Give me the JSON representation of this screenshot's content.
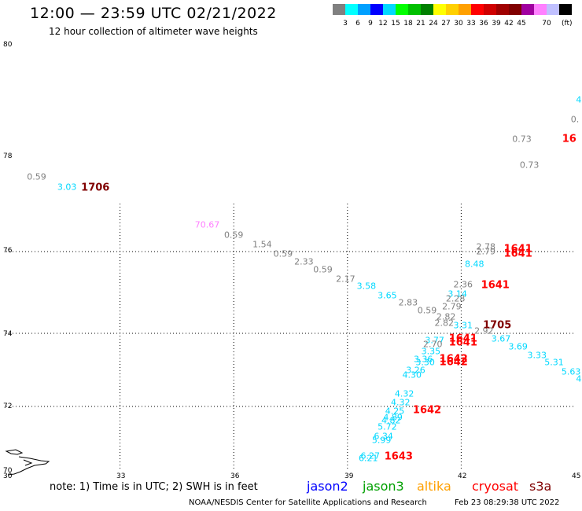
{
  "title": "12:00 — 23:59 UTC 02/21/2022",
  "subtitle": "12 hour collection of altimeter wave heights",
  "legend": {
    "colors": [
      "#808080",
      "#00ffff",
      "#00a0ff",
      "#0000ff",
      "#00d8ff",
      "#00ff00",
      "#00c000",
      "#008000",
      "#ffff00",
      "#ffd000",
      "#ffa000",
      "#ff0000",
      "#d00000",
      "#a00000",
      "#800000",
      "#a000a0",
      "#ff80ff",
      "#c0c0ff",
      "#000000"
    ],
    "labels": [
      "3",
      "6",
      "9",
      "12",
      "15",
      "18",
      "21",
      "24",
      "27",
      "30",
      "33",
      "36",
      "39",
      "42",
      "45",
      "70"
    ],
    "unit": "(ft)"
  },
  "lat_labels": [
    "80",
    "78",
    "76",
    "74",
    "72",
    "70"
  ],
  "lon_labels": [
    "30",
    "33",
    "36",
    "39",
    "42",
    "45"
  ],
  "map": {
    "lat_range": [
      70,
      80
    ],
    "lon_range": [
      30,
      45
    ],
    "grid_lats": [
      72,
      74,
      76
    ],
    "grid_lons": [
      33,
      36,
      39,
      42
    ]
  },
  "measurements": [
    {
      "text": "0.59",
      "lon": 30.8,
      "lat": 77.55,
      "color": "#808080"
    },
    {
      "text": "3.03",
      "lon": 31.6,
      "lat": 77.35,
      "color": "#00d8ff"
    },
    {
      "text": "70.67",
      "lon": 35.3,
      "lat": 76.55,
      "color": "#ff80ff"
    },
    {
      "text": "0.59",
      "lon": 36.0,
      "lat": 76.35,
      "color": "#808080"
    },
    {
      "text": "1.54",
      "lon": 36.75,
      "lat": 76.15,
      "color": "#808080"
    },
    {
      "text": "0.59",
      "lon": 37.3,
      "lat": 75.95,
      "color": "#808080"
    },
    {
      "text": "2.33",
      "lon": 37.85,
      "lat": 75.75,
      "color": "#808080"
    },
    {
      "text": "0.59",
      "lon": 38.35,
      "lat": 75.55,
      "color": "#808080"
    },
    {
      "text": "2.17",
      "lon": 38.95,
      "lat": 75.33,
      "color": "#808080"
    },
    {
      "text": "3.58",
      "lon": 39.5,
      "lat": 75.15,
      "color": "#00d8ff"
    },
    {
      "text": "3.65",
      "lon": 40.05,
      "lat": 74.92,
      "color": "#00d8ff"
    },
    {
      "text": "2.83",
      "lon": 40.6,
      "lat": 74.75,
      "color": "#808080"
    },
    {
      "text": "0.59",
      "lon": 41.1,
      "lat": 74.55,
      "color": "#808080"
    },
    {
      "text": "2.36",
      "lon": 42.05,
      "lat": 75.2,
      "color": "#808080"
    },
    {
      "text": "3.14",
      "lon": 41.9,
      "lat": 74.97,
      "color": "#00d8ff"
    },
    {
      "text": "2.28",
      "lon": 41.85,
      "lat": 74.85,
      "color": "#808080"
    },
    {
      "text": "2.79",
      "lon": 41.75,
      "lat": 74.65,
      "color": "#808080"
    },
    {
      "text": "2.82",
      "lon": 41.6,
      "lat": 74.4,
      "color": "#808080"
    },
    {
      "text": "2.82",
      "lon": 41.55,
      "lat": 74.25,
      "color": "#808080"
    },
    {
      "text": "3.31",
      "lon": 42.05,
      "lat": 74.2,
      "color": "#00d8ff"
    },
    {
      "text": "2.92",
      "lon": 42.6,
      "lat": 74.05,
      "color": "#808080"
    },
    {
      "text": "3.77",
      "lon": 41.3,
      "lat": 73.8,
      "color": "#00d8ff"
    },
    {
      "text": "2.70",
      "lon": 41.25,
      "lat": 73.7,
      "color": "#808080"
    },
    {
      "text": "3.35",
      "lon": 41.2,
      "lat": 73.5,
      "color": "#00d8ff"
    },
    {
      "text": "3.36",
      "lon": 41.0,
      "lat": 73.3,
      "color": "#00d8ff"
    },
    {
      "text": "3.30",
      "lon": 41.05,
      "lat": 73.2,
      "color": "#00d8ff"
    },
    {
      "text": "3.26",
      "lon": 40.8,
      "lat": 73.0,
      "color": "#00d8ff"
    },
    {
      "text": "4.30",
      "lon": 40.7,
      "lat": 72.85,
      "color": "#00d8ff"
    },
    {
      "text": "2.78",
      "lon": 42.65,
      "lat": 76.1,
      "color": "#808080"
    },
    {
      "text": "2.79",
      "lon": 42.65,
      "lat": 76.0,
      "color": "#808080"
    },
    {
      "text": "8.48",
      "lon": 42.35,
      "lat": 75.7,
      "color": "#00d8ff"
    },
    {
      "text": "3.67",
      "lon": 43.05,
      "lat": 73.85,
      "color": "#00d8ff"
    },
    {
      "text": "3.69",
      "lon": 43.5,
      "lat": 73.63,
      "color": "#00d8ff"
    },
    {
      "text": "3.33",
      "lon": 44.0,
      "lat": 73.4,
      "color": "#00d8ff"
    },
    {
      "text": "5.31",
      "lon": 44.45,
      "lat": 73.2,
      "color": "#00d8ff"
    },
    {
      "text": "5.63",
      "lon": 44.9,
      "lat": 72.95,
      "color": "#00d8ff"
    },
    {
      "text": "4",
      "lon": 45.1,
      "lat": 72.75,
      "color": "#00d8ff"
    },
    {
      "text": "4.32",
      "lon": 40.5,
      "lat": 72.35,
      "color": "#00d8ff"
    },
    {
      "text": "4.32",
      "lon": 40.4,
      "lat": 72.1,
      "color": "#00d8ff"
    },
    {
      "text": "4.25",
      "lon": 40.25,
      "lat": 71.85,
      "color": "#00d8ff"
    },
    {
      "text": "4.89",
      "lon": 40.2,
      "lat": 71.65,
      "color": "#00d8ff"
    },
    {
      "text": "4.82",
      "lon": 40.15,
      "lat": 71.55,
      "color": "#00d8ff"
    },
    {
      "text": "5.72",
      "lon": 40.05,
      "lat": 71.35,
      "color": "#00d8ff"
    },
    {
      "text": "6.34",
      "lon": 39.95,
      "lat": 71.05,
      "color": "#00d8ff"
    },
    {
      "text": "5.99",
      "lon": 39.9,
      "lat": 70.95,
      "color": "#00d8ff"
    },
    {
      "text": "6.27",
      "lon": 39.6,
      "lat": 70.45,
      "color": "#00d8ff"
    },
    {
      "text": "6.21",
      "lon": 39.55,
      "lat": 70.38,
      "color": "#00d8ff"
    },
    {
      "text": "0.73",
      "lon": 43.6,
      "lat": 78.3,
      "color": "#808080"
    },
    {
      "text": "0.73",
      "lon": 43.8,
      "lat": 77.8,
      "color": "#808080"
    },
    {
      "text": "4",
      "lon": 45.1,
      "lat": 79.0,
      "color": "#00d8ff"
    },
    {
      "text": "0.",
      "lon": 45.0,
      "lat": 78.65,
      "color": "#808080"
    }
  ],
  "times": [
    {
      "text": "1706",
      "lon": 32.35,
      "lat": 77.33,
      "color": "#800000"
    },
    {
      "text": "1641",
      "lon": 43.5,
      "lat": 76.05,
      "color": "#ff0000"
    },
    {
      "text": "1641",
      "lon": 43.5,
      "lat": 75.95,
      "color": "#ff0000"
    },
    {
      "text": "1641",
      "lon": 42.9,
      "lat": 75.18,
      "color": "#ff0000"
    },
    {
      "text": "1705",
      "lon": 42.95,
      "lat": 74.2,
      "color": "#800000"
    },
    {
      "text": "1641",
      "lon": 42.05,
      "lat": 73.85,
      "color": "#ff0000"
    },
    {
      "text": "1641",
      "lon": 42.05,
      "lat": 73.75,
      "color": "#ff0000"
    },
    {
      "text": "1642",
      "lon": 41.8,
      "lat": 73.3,
      "color": "#ff0000"
    },
    {
      "text": "1642",
      "lon": 41.8,
      "lat": 73.2,
      "color": "#ff0000"
    },
    {
      "text": "1642",
      "lon": 41.1,
      "lat": 71.88,
      "color": "#ff0000"
    },
    {
      "text": "1643",
      "lon": 40.35,
      "lat": 70.42,
      "color": "#ff0000"
    },
    {
      "text": "16",
      "lon": 44.85,
      "lat": 78.3,
      "color": "#ff0000"
    }
  ],
  "note": "note:  1) Time is in UTC;  2) SWH is in feet",
  "satellites": [
    {
      "name": "jason2",
      "color": "#0000ff"
    },
    {
      "name": "jason3",
      "color": "#00a000"
    },
    {
      "name": "altika",
      "color": "#ffa000"
    },
    {
      "name": "cryosat",
      "color": "#ff0000"
    },
    {
      "name": "s3a",
      "color": "#800000"
    }
  ],
  "credit": "NOAA/NESDIS Center for Satellite Applications and Research",
  "timestamp": "Feb 23 08:29:38 UTC 2022"
}
